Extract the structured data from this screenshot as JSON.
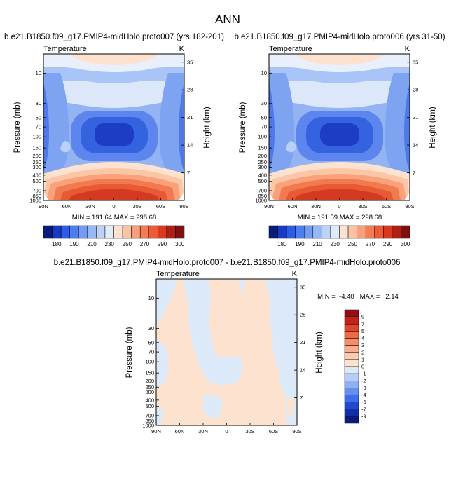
{
  "page_title": "ANN",
  "colors": {
    "background": "#ffffff",
    "axis": "#000000",
    "cold_deep": "#1a2ea8",
    "warm_deep": "#c0231b",
    "diff_pos": "#fde3cf",
    "diff_neg": "#dce9f9"
  },
  "chart_data": [
    {
      "id": "panel-left",
      "type": "heatmap",
      "title": "b.e21.B1850.f09_g17.PMIP4-midHolo.proto007 (yrs 182-201)",
      "left_label": "Temperature",
      "right_label": "K",
      "ylabel": "Pressure (mb)",
      "ylabel_right": "Height (km)",
      "x_ticks": [
        "90N",
        "60N",
        "30N",
        "0",
        "30S",
        "60S",
        "90S"
      ],
      "x_range": [
        90,
        -90
      ],
      "y_ticks": [
        "10",
        "30",
        "50",
        "70",
        "100",
        "150",
        "200",
        "250",
        "300",
        "400",
        "500",
        "700",
        "850",
        "1000"
      ],
      "y_tick_values": [
        10,
        30,
        50,
        70,
        100,
        150,
        200,
        250,
        300,
        400,
        500,
        700,
        850,
        1000
      ],
      "y_range": [
        5,
        1000
      ],
      "height_ticks": [
        "35",
        "28",
        "21",
        "14",
        "7"
      ],
      "height_tick_values": [
        35,
        28,
        21,
        14,
        7
      ],
      "stats_text": "MIN = 191.64   MAX = 298.68",
      "min": 191.64,
      "max": 298.68,
      "colorbar": {
        "orientation": "horizontal",
        "tick_labels": [
          "180",
          "190",
          "210",
          "230",
          "250",
          "270",
          "290",
          "300"
        ],
        "colors": [
          "#0a1c7a",
          "#1838c8",
          "#2e5be6",
          "#4d7ef0",
          "#729cf3",
          "#98b7f6",
          "#bed3f9",
          "#e1ecfb",
          "#fde3cf",
          "#fbc3a4",
          "#f8a07b",
          "#f47c55",
          "#ee5a35",
          "#d83a20",
          "#b01f14",
          "#7e1010"
        ]
      }
    },
    {
      "id": "panel-right",
      "type": "heatmap",
      "title": "b.e21.B1850.f09_g17.PMIP4-midHolo.proto006 (yrs 31-50)",
      "left_label": "Temperature",
      "right_label": "K",
      "ylabel": "Pressure (mb)",
      "ylabel_right": "Height (km)",
      "x_ticks": [
        "90N",
        "60N",
        "30N",
        "0",
        "30S",
        "60S",
        "90S"
      ],
      "x_range": [
        90,
        -90
      ],
      "y_ticks": [
        "10",
        "30",
        "50",
        "70",
        "100",
        "150",
        "200",
        "250",
        "300",
        "400",
        "500",
        "700",
        "850",
        "1000"
      ],
      "y_tick_values": [
        10,
        30,
        50,
        70,
        100,
        150,
        200,
        250,
        300,
        400,
        500,
        700,
        850,
        1000
      ],
      "y_range": [
        5,
        1000
      ],
      "height_ticks": [
        "35",
        "28",
        "21",
        "14",
        "7"
      ],
      "height_tick_values": [
        35,
        28,
        21,
        14,
        7
      ],
      "stats_text": "MIN = 191.59   MAX = 298.68",
      "min": 191.59,
      "max": 298.68,
      "colorbar": {
        "orientation": "horizontal",
        "tick_labels": [
          "180",
          "190",
          "210",
          "230",
          "250",
          "270",
          "290",
          "300"
        ],
        "colors": [
          "#0a1c7a",
          "#1838c8",
          "#2e5be6",
          "#4d7ef0",
          "#729cf3",
          "#98b7f6",
          "#bed3f9",
          "#e1ecfb",
          "#fde3cf",
          "#fbc3a4",
          "#f8a07b",
          "#f47c55",
          "#ee5a35",
          "#d83a20",
          "#b01f14",
          "#7e1010"
        ]
      }
    },
    {
      "id": "panel-diff",
      "type": "heatmap",
      "title": "b.e21.B1850.f09_g17.PMIP4-midHolo.proto007 - b.e21.B1850.f09_g17.PMIP4-midHolo.proto006",
      "left_label": "Temperature",
      "right_label": "K",
      "ylabel": "Pressure (mb)",
      "ylabel_right": "Height (km)",
      "x_ticks": [
        "90N",
        "60N",
        "30N",
        "0",
        "30S",
        "60S",
        "90S"
      ],
      "x_range": [
        90,
        -90
      ],
      "y_ticks": [
        "10",
        "30",
        "50",
        "70",
        "100",
        "150",
        "200",
        "250",
        "300",
        "400",
        "500",
        "700",
        "850",
        "1000"
      ],
      "y_tick_values": [
        10,
        30,
        50,
        70,
        100,
        150,
        200,
        250,
        300,
        400,
        500,
        700,
        850,
        1000
      ],
      "y_range": [
        5,
        1000
      ],
      "height_ticks": [
        "35",
        "28",
        "21",
        "14",
        "7"
      ],
      "height_tick_values": [
        35,
        28,
        21,
        14,
        7
      ],
      "stats_text": "MIN =  -4.40   MAX =   2.14",
      "min": -4.4,
      "max": 2.14,
      "colorbar": {
        "orientation": "vertical",
        "tick_labels": [
          "9",
          "7",
          "5",
          "4",
          "3",
          "2",
          "1",
          "0",
          "-1",
          "-2",
          "-3",
          "-4",
          "-5",
          "-7",
          "-9"
        ],
        "colors": [
          "#8e1010",
          "#c0231b",
          "#e0452b",
          "#ef6a44",
          "#f58d68",
          "#f8ad8e",
          "#fbcbb0",
          "#fde3cf",
          "#dce9f9",
          "#b7cdf6",
          "#8fb0f1",
          "#6690ec",
          "#3f6ee6",
          "#2048d0",
          "#122ea0",
          "#0a1c7a"
        ]
      }
    }
  ]
}
